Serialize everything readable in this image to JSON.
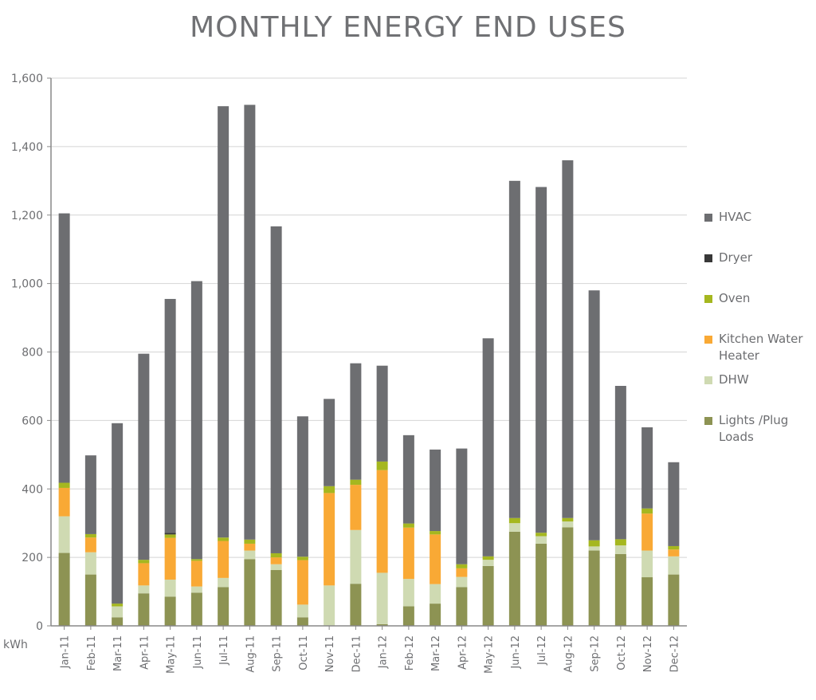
{
  "chart_data": {
    "type": "bar",
    "stacked": true,
    "title": "MONTHLY ENERGY END USES",
    "ylabel": "kWh",
    "xlabel": "",
    "ylim": [
      0,
      1600
    ],
    "yticks": [
      "0",
      "200",
      "400",
      "600",
      "800",
      "1,000",
      "1,200",
      "1,400",
      "1,600"
    ],
    "grid": true,
    "legend_position": "right",
    "categories": [
      "Jan-11",
      "Feb-11",
      "Mar-11",
      "Apr-11",
      "May-11",
      "Jun-11",
      "Jul-11",
      "Aug-11",
      "Sep-11",
      "Oct-11",
      "Nov-11",
      "Dec-11",
      "Jan-12",
      "Feb-12",
      "Mar-12",
      "Apr-12",
      "May-12",
      "Jun-12",
      "Jul-12",
      "Aug-12",
      "Sep-12",
      "Oct-12",
      "Nov-12",
      "Dec-12"
    ],
    "series": [
      {
        "name": "Lights /Plug Loads",
        "color": "#8d9353",
        "values": [
          213,
          150,
          25,
          95,
          85,
          97,
          113,
          195,
          163,
          25,
          0,
          123,
          5,
          57,
          65,
          113,
          175,
          275,
          240,
          288,
          220,
          210,
          142,
          150
        ]
      },
      {
        "name": "DHW",
        "color": "#cfdab2",
        "values": [
          107,
          65,
          32,
          23,
          50,
          18,
          27,
          25,
          17,
          37,
          118,
          157,
          150,
          80,
          57,
          30,
          18,
          25,
          22,
          17,
          12,
          25,
          78,
          53
        ]
      },
      {
        "name": "Kitchen Water Heater",
        "color": "#f9a935",
        "values": [
          83,
          43,
          0,
          65,
          122,
          75,
          108,
          20,
          20,
          130,
          270,
          132,
          300,
          150,
          145,
          25,
          0,
          0,
          0,
          0,
          0,
          0,
          108,
          20
        ]
      },
      {
        "name": "Oven",
        "color": "#a5b71f",
        "values": [
          15,
          10,
          8,
          10,
          10,
          5,
          10,
          12,
          12,
          10,
          20,
          15,
          25,
          12,
          10,
          12,
          10,
          15,
          10,
          10,
          18,
          18,
          15,
          10
        ]
      },
      {
        "name": "Dryer",
        "color": "#383838",
        "values": [
          0,
          0,
          0,
          0,
          5,
          0,
          0,
          0,
          0,
          0,
          0,
          0,
          0,
          0,
          0,
          0,
          0,
          0,
          0,
          0,
          0,
          0,
          0,
          0
        ]
      },
      {
        "name": "HVAC",
        "color": "#6d6e71",
        "values": [
          787,
          230,
          527,
          602,
          683,
          812,
          1260,
          1270,
          955,
          410,
          255,
          340,
          280,
          258,
          238,
          338,
          637,
          985,
          1010,
          1045,
          730,
          448,
          237,
          245
        ]
      }
    ],
    "legend_order": [
      "HVAC",
      "Dryer",
      "Oven",
      "Kitchen Water Heater",
      "DHW",
      "Lights /Plug Loads"
    ]
  }
}
